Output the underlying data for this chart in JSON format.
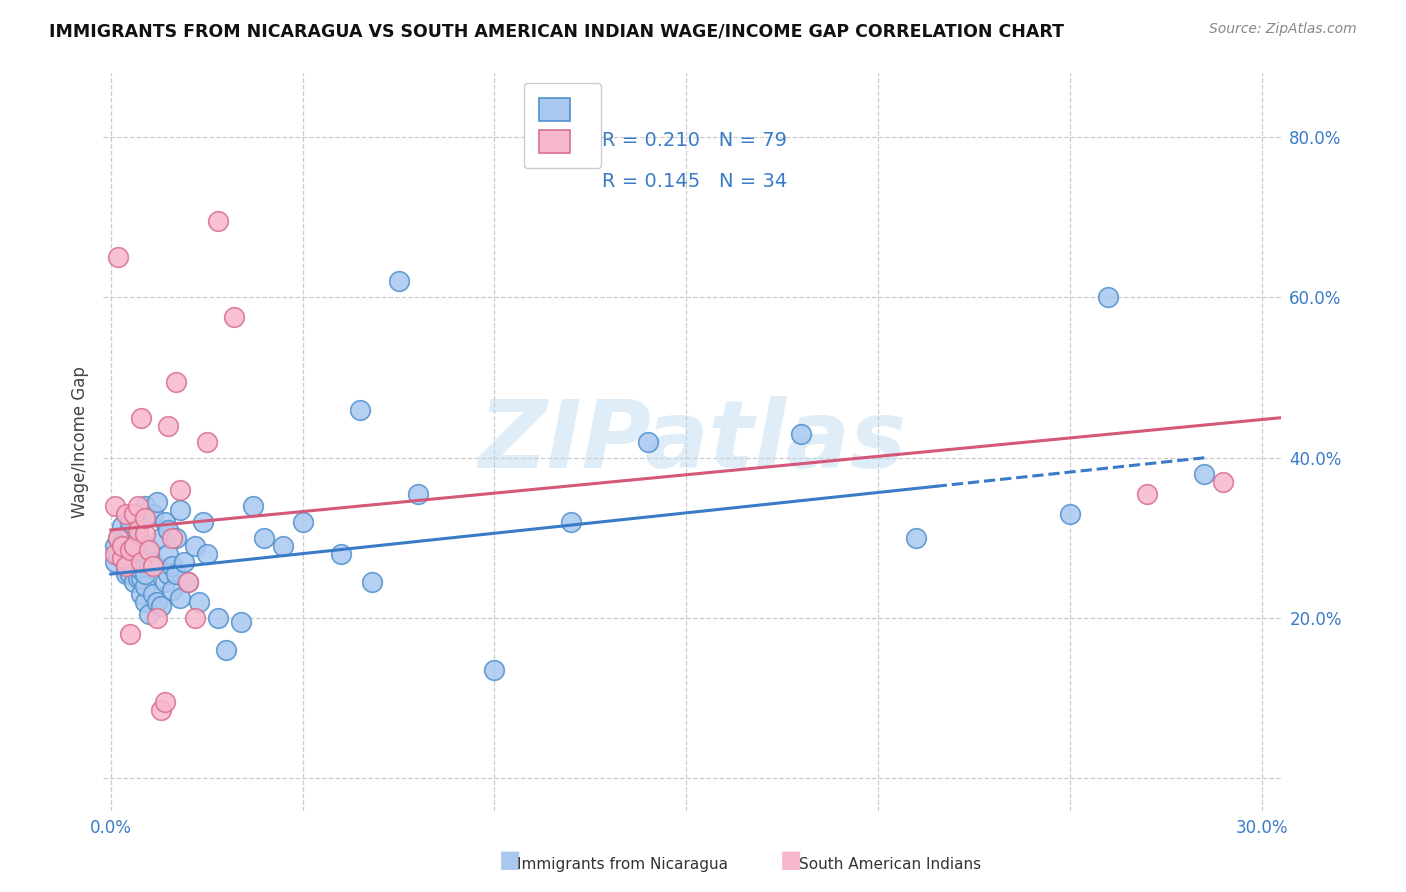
{
  "title": "IMMIGRANTS FROM NICARAGUA VS SOUTH AMERICAN INDIAN WAGE/INCOME GAP CORRELATION CHART",
  "source": "Source: ZipAtlas.com",
  "ylabel": "Wage/Income Gap",
  "xlim": [
    -0.002,
    0.305
  ],
  "ylim": [
    -0.04,
    0.88
  ],
  "yticks": [
    0.0,
    0.2,
    0.4,
    0.6,
    0.8
  ],
  "ytick_labels": [
    "",
    "20.0%",
    "40.0%",
    "60.0%",
    "80.0%"
  ],
  "xticks": [
    0.0,
    0.05,
    0.1,
    0.15,
    0.2,
    0.25,
    0.3
  ],
  "xtick_labels": [
    "0.0%",
    "",
    "",
    "",
    "",
    "",
    "30.0%"
  ],
  "legend_r1": "R = 0.210",
  "legend_n1": "N = 79",
  "legend_r2": "R = 0.145",
  "legend_n2": "N = 34",
  "blue_face": "#A8C8F0",
  "blue_edge": "#5090CC",
  "pink_face": "#F8B8CC",
  "pink_edge": "#D87090",
  "blue_line": "#3A7BC8",
  "pink_line": "#D45878",
  "text_blue": "#3A7BC8",
  "watermark_text": "ZIPatlas",
  "blue_points_x": [
    0.001,
    0.001,
    0.002,
    0.002,
    0.003,
    0.003,
    0.003,
    0.004,
    0.004,
    0.004,
    0.005,
    0.005,
    0.005,
    0.005,
    0.005,
    0.006,
    0.006,
    0.006,
    0.007,
    0.007,
    0.007,
    0.007,
    0.007,
    0.008,
    0.008,
    0.008,
    0.008,
    0.008,
    0.009,
    0.009,
    0.009,
    0.009,
    0.01,
    0.01,
    0.01,
    0.011,
    0.011,
    0.011,
    0.012,
    0.012,
    0.013,
    0.013,
    0.014,
    0.014,
    0.015,
    0.015,
    0.015,
    0.016,
    0.016,
    0.017,
    0.017,
    0.018,
    0.018,
    0.019,
    0.02,
    0.022,
    0.023,
    0.024,
    0.025,
    0.028,
    0.03,
    0.034,
    0.037,
    0.04,
    0.045,
    0.05,
    0.06,
    0.065,
    0.068,
    0.075,
    0.08,
    0.1,
    0.12,
    0.14,
    0.18,
    0.21,
    0.25,
    0.26,
    0.285
  ],
  "blue_points_y": [
    0.27,
    0.29,
    0.28,
    0.3,
    0.275,
    0.295,
    0.315,
    0.26,
    0.28,
    0.255,
    0.27,
    0.29,
    0.31,
    0.255,
    0.32,
    0.245,
    0.265,
    0.285,
    0.25,
    0.27,
    0.295,
    0.28,
    0.3,
    0.23,
    0.25,
    0.26,
    0.285,
    0.295,
    0.22,
    0.24,
    0.255,
    0.34,
    0.205,
    0.27,
    0.285,
    0.23,
    0.27,
    0.33,
    0.22,
    0.345,
    0.215,
    0.3,
    0.245,
    0.32,
    0.255,
    0.28,
    0.31,
    0.235,
    0.265,
    0.255,
    0.3,
    0.225,
    0.335,
    0.27,
    0.245,
    0.29,
    0.22,
    0.32,
    0.28,
    0.2,
    0.16,
    0.195,
    0.34,
    0.3,
    0.29,
    0.32,
    0.28,
    0.46,
    0.245,
    0.62,
    0.355,
    0.135,
    0.32,
    0.42,
    0.43,
    0.3,
    0.33,
    0.6,
    0.38
  ],
  "pink_points_x": [
    0.001,
    0.001,
    0.002,
    0.002,
    0.003,
    0.003,
    0.004,
    0.004,
    0.005,
    0.005,
    0.006,
    0.006,
    0.007,
    0.007,
    0.008,
    0.008,
    0.009,
    0.009,
    0.01,
    0.011,
    0.012,
    0.013,
    0.014,
    0.015,
    0.016,
    0.017,
    0.018,
    0.02,
    0.022,
    0.025,
    0.028,
    0.032,
    0.27,
    0.29
  ],
  "pink_points_y": [
    0.28,
    0.34,
    0.3,
    0.65,
    0.275,
    0.29,
    0.265,
    0.33,
    0.285,
    0.18,
    0.29,
    0.33,
    0.31,
    0.34,
    0.27,
    0.45,
    0.305,
    0.325,
    0.285,
    0.265,
    0.2,
    0.085,
    0.095,
    0.44,
    0.3,
    0.495,
    0.36,
    0.245,
    0.2,
    0.42,
    0.695,
    0.575,
    0.355,
    0.37
  ],
  "blue_trend_x1": 0.0,
  "blue_trend_y1": 0.255,
  "blue_trend_x2": 0.285,
  "blue_trend_y2": 0.4,
  "blue_dash_from": 0.215,
  "pink_trend_x1": 0.0,
  "pink_trend_y1": 0.31,
  "pink_trend_x2": 0.305,
  "pink_trend_y2": 0.45,
  "figsize": [
    14.06,
    8.92
  ],
  "dpi": 100
}
